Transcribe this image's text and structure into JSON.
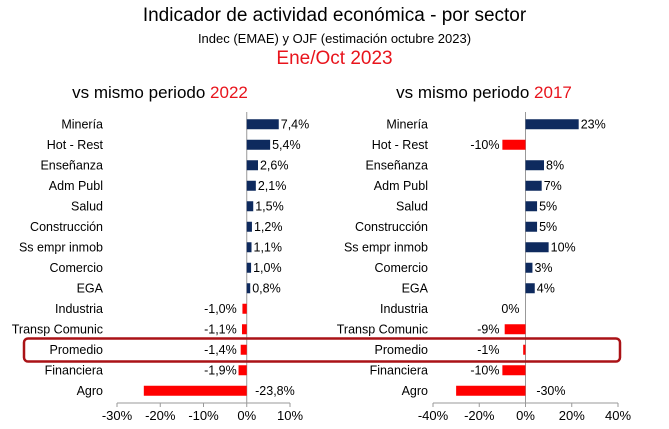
{
  "header": {
    "title": "Indicador de actividad económica - por sector",
    "subtitle": "Indec (EMAE) y OJF (estimación octubre 2023)",
    "period": "Ene/Oct 2023"
  },
  "colors": {
    "positive": "#0e2a5e",
    "negative": "#ff0000",
    "highlight": "#aa1216",
    "red_text": "#e8141c"
  },
  "chart_data": [
    {
      "type": "bar",
      "orientation": "horizontal",
      "title_prefix": "vs mismo periodo ",
      "title_year": "2022",
      "categories": [
        "Minería",
        "Hot - Rest",
        "Enseñanza",
        "Adm Publ",
        "Salud",
        "Construcción",
        "Ss empr inmob",
        "Comercio",
        "EGA",
        "Industria",
        "Transp Comunic",
        "Promedio",
        "Financiera",
        "Agro"
      ],
      "values": [
        7.4,
        5.4,
        2.6,
        2.1,
        1.5,
        1.2,
        1.1,
        1.0,
        0.8,
        -1.0,
        -1.1,
        -1.4,
        -1.9,
        -23.8
      ],
      "labels": [
        "7,4%",
        "5,4%",
        "2,6%",
        "2,1%",
        "1,5%",
        "1,2%",
        "1,1%",
        "1,0%",
        "0,8%",
        "-1,0%",
        "-1,1%",
        "-1,4%",
        "-1,9%",
        "-23,8%"
      ],
      "xlim": [
        -30,
        10
      ],
      "xticks": [
        -30,
        -20,
        -10,
        0,
        10
      ],
      "xtick_labels": [
        "-30%",
        "-20%",
        "-10%",
        "0%",
        "10%"
      ],
      "highlight": "Promedio"
    },
    {
      "type": "bar",
      "orientation": "horizontal",
      "title_prefix": "vs mismo periodo ",
      "title_year": "2017",
      "categories": [
        "Minería",
        "Hot - Rest",
        "Enseñanza",
        "Adm Publ",
        "Salud",
        "Construcción",
        "Ss empr inmob",
        "Comercio",
        "EGA",
        "Industria",
        "Transp Comunic",
        "Promedio",
        "Financiera",
        "Agro"
      ],
      "values": [
        23,
        -10,
        8,
        7,
        5,
        5,
        10,
        3,
        4,
        0,
        -9,
        -1,
        -10,
        -30
      ],
      "labels": [
        "23%",
        "-10%",
        "8%",
        "7%",
        "5%",
        "5%",
        "10%",
        "3%",
        "4%",
        "0%",
        "-9%",
        "-1%",
        "-10%",
        "-30%"
      ],
      "xlim": [
        -40,
        40
      ],
      "xticks": [
        -40,
        -20,
        0,
        20,
        40
      ],
      "xtick_labels": [
        "-40%",
        "-20%",
        "0%",
        "20%",
        "40%"
      ],
      "highlight": "Promedio"
    }
  ]
}
